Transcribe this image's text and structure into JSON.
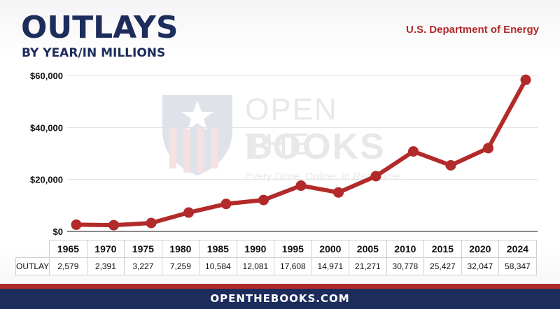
{
  "header": {
    "title": "OUTLAYS",
    "subtitle": "BY YEAR/IN MILLIONS",
    "agency": "U.S. Department of Energy"
  },
  "watermark": {
    "line1": "OPEN THE",
    "line2": "BOOKS",
    "tagline": "Every Dime. Online. In Real Time."
  },
  "table": {
    "row_label": "OUTLAY",
    "values_text": [
      "2,579",
      "2,391",
      "3,227",
      "7,259",
      "10,584",
      "12,081",
      "17,608",
      "14,971",
      "21,271",
      "30,778",
      "25,427",
      "32,047",
      "58,347"
    ]
  },
  "footer": {
    "text": "OPENTHEBOOKS.COM"
  },
  "colors": {
    "navy": "#1c2c5b",
    "red": "#b22a2a",
    "line": "#b22a2a",
    "grid": "#e0e0e0"
  },
  "chart_data": {
    "type": "line",
    "title": "OUTLAYS",
    "subtitle": "BY YEAR/IN MILLIONS",
    "categories": [
      "1965",
      "1970",
      "1975",
      "1980",
      "1985",
      "1990",
      "1995",
      "2000",
      "2005",
      "2010",
      "2015",
      "2020",
      "2024"
    ],
    "series": [
      {
        "values": [
          2579,
          2391,
          3227,
          7259,
          10584,
          12081,
          17608,
          14971,
          21271,
          30778,
          25427,
          32047,
          58347
        ]
      }
    ],
    "yticks": [
      0,
      20000,
      40000,
      60000
    ],
    "ytick_labels": [
      "$0",
      "$20,000",
      "$40,000",
      "$60,000"
    ],
    "ylim": [
      0,
      60000
    ],
    "grid": true,
    "legend": "none"
  }
}
